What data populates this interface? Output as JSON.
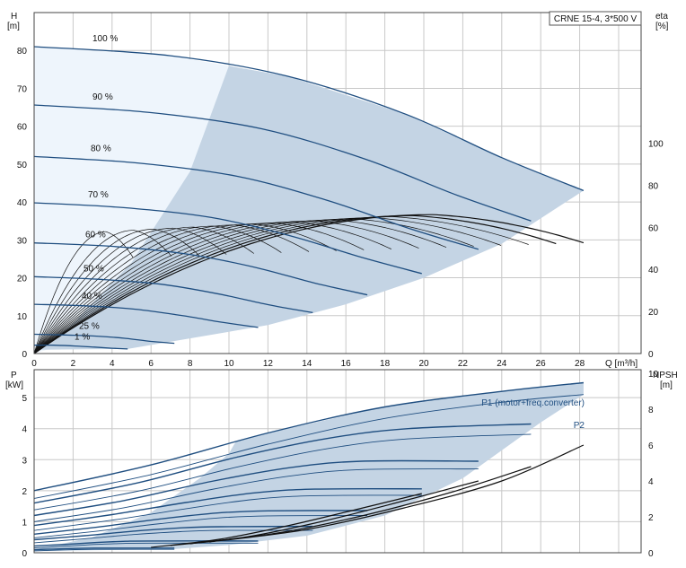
{
  "chart_data": [
    {
      "type": "line",
      "title": "CRNE 15-4, 3*500 V",
      "xlabel": "Q [m³/h]",
      "ylabel_left": [
        "H",
        "[m]"
      ],
      "ylabel_right": [
        "eta",
        "[%]"
      ],
      "xlim": [
        0,
        30
      ],
      "ylim_left": [
        0,
        90
      ],
      "ylim_right": [
        0,
        162
      ],
      "x_ticks": [
        "0",
        "2",
        "4",
        "6",
        "8",
        "10",
        "12",
        "14",
        "16",
        "18",
        "20",
        "22",
        "24",
        "26",
        "28"
      ],
      "y_ticks_left": [
        "0",
        "10",
        "20",
        "30",
        "40",
        "50",
        "60",
        "70",
        "80"
      ],
      "y_ticks_right": [
        "0",
        "20",
        "40",
        "60",
        "80",
        "100"
      ],
      "grid": true,
      "operating_range_color": "#c4d4e4",
      "region_light_color": "#eef5fc",
      "curve_color": "#1f4e80",
      "series": [
        {
          "name": "100 %",
          "points": [
            [
              0,
              81
            ],
            [
              7,
              78.6
            ],
            [
              13,
              73.2
            ],
            [
              19,
              63.3
            ],
            [
              24,
              51.7
            ],
            [
              28.2,
              43
            ]
          ]
        },
        {
          "name": "90 %",
          "points": [
            [
              0,
              65.6
            ],
            [
              6,
              63.6
            ],
            [
              11.7,
              59.3
            ],
            [
              17,
              51.3
            ],
            [
              21.6,
              42
            ],
            [
              25.5,
              35
            ]
          ]
        },
        {
          "name": "80 %",
          "points": [
            [
              0,
              52
            ],
            [
              5.3,
              50.3
            ],
            [
              10.4,
              46.8
            ],
            [
              15,
              40.5
            ],
            [
              19.2,
              33.1
            ],
            [
              22.8,
              27.5
            ]
          ]
        },
        {
          "name": "70 %",
          "points": [
            [
              0,
              39.8
            ],
            [
              4.6,
              38.5
            ],
            [
              9.1,
              35.9
            ],
            [
              13.2,
              31
            ],
            [
              16.8,
              25.4
            ],
            [
              19.9,
              21.1
            ]
          ]
        },
        {
          "name": "60 %",
          "points": [
            [
              0,
              29.2
            ],
            [
              4,
              28.3
            ],
            [
              7.8,
              26.3
            ],
            [
              11.3,
              22.8
            ],
            [
              14.4,
              18.6
            ],
            [
              17.1,
              15.5
            ]
          ]
        },
        {
          "name": "50 %",
          "points": [
            [
              0,
              20.3
            ],
            [
              3.3,
              19.6
            ],
            [
              6.5,
              18.3
            ],
            [
              9.4,
              15.8
            ],
            [
              12,
              12.9
            ],
            [
              14.3,
              10.8
            ]
          ]
        },
        {
          "name": "40 %",
          "points": [
            [
              0,
              13
            ],
            [
              2.6,
              12.6
            ],
            [
              5.2,
              11.7
            ],
            [
              7.5,
              10.1
            ],
            [
              9.6,
              8.3
            ],
            [
              11.5,
              6.9
            ]
          ]
        },
        {
          "name": "25 %",
          "points": [
            [
              0,
              5.1
            ],
            [
              1.6,
              4.9
            ],
            [
              3.2,
              4.6
            ],
            [
              4.7,
              4
            ],
            [
              6,
              3.2
            ],
            [
              7.2,
              2.7
            ]
          ]
        },
        {
          "name": "1 %",
          "points": [
            [
              0,
              2.2
            ],
            [
              1,
              2.2
            ],
            [
              2.1,
              2
            ],
            [
              3.1,
              1.7
            ],
            [
              4,
              1.4
            ],
            [
              4.8,
              1.2
            ]
          ]
        }
      ],
      "eta_curves": [
        {
          "scale": 0.18
        },
        {
          "scale": 0.25
        },
        {
          "scale": 0.3
        },
        {
          "scale": 0.35
        },
        {
          "scale": 0.4
        },
        {
          "scale": 0.45
        },
        {
          "scale": 0.5
        },
        {
          "scale": 0.55
        },
        {
          "scale": 0.6
        },
        {
          "scale": 0.65
        },
        {
          "scale": 0.7
        },
        {
          "scale": 0.75
        },
        {
          "scale": 0.8
        },
        {
          "scale": 0.85
        },
        {
          "scale": 0.9
        },
        {
          "scale": 0.95
        },
        {
          "scale": 1.0
        }
      ],
      "eta_base": {
        "q_peak": 20.5,
        "eta_peak": 66,
        "q_end": 28.2,
        "eta_end": 54
      }
    },
    {
      "type": "line",
      "xlabel": "",
      "ylabel_left": [
        "P",
        "[kW]"
      ],
      "ylabel_right": [
        "NPSH",
        "[m]"
      ],
      "xlim": [
        0,
        30
      ],
      "ylim_left": [
        0,
        5.9
      ],
      "ylim_right": [
        0,
        10
      ],
      "y_ticks_left": [
        "0",
        "1",
        "2",
        "3",
        "4",
        "5"
      ],
      "y_ticks_right": [
        "0",
        "2",
        "4",
        "6",
        "8",
        "10"
      ],
      "grid": true,
      "annotations": [
        "P1 (motor+freq.converter)",
        "P2"
      ],
      "p1_series": [
        {
          "points": [
            [
              0,
              2.0
            ],
            [
              6,
              2.83
            ],
            [
              12,
              3.86
            ],
            [
              18,
              4.7
            ],
            [
              24,
              5.2
            ],
            [
              28.2,
              5.48
            ]
          ]
        },
        {
          "points": [
            [
              0,
              1.6
            ],
            [
              5.3,
              2.25
            ],
            [
              10.4,
              3.08
            ],
            [
              15,
              3.68
            ],
            [
              19.2,
              4.0
            ],
            [
              25.5,
              4.15
            ]
          ]
        },
        {
          "points": [
            [
              0,
              1.2
            ],
            [
              4.6,
              1.68
            ],
            [
              9.1,
              2.3
            ],
            [
              13.2,
              2.75
            ],
            [
              16.8,
              2.95
            ],
            [
              22.8,
              2.95
            ]
          ]
        },
        {
          "points": [
            [
              0,
              0.88
            ],
            [
              4,
              1.23
            ],
            [
              7.8,
              1.62
            ],
            [
              11.3,
              1.93
            ],
            [
              14.4,
              2.05
            ],
            [
              19.9,
              2.06
            ]
          ]
        },
        {
          "points": [
            [
              0,
              0.6
            ],
            [
              3.3,
              0.83
            ],
            [
              6.5,
              1.09
            ],
            [
              9.4,
              1.28
            ],
            [
              12,
              1.35
            ],
            [
              17.1,
              1.36
            ]
          ]
        },
        {
          "points": [
            [
              0,
              0.42
            ],
            [
              2.6,
              0.55
            ],
            [
              5.2,
              0.7
            ],
            [
              7.5,
              0.8
            ],
            [
              9.6,
              0.84
            ],
            [
              14.3,
              0.85
            ]
          ]
        },
        {
          "points": [
            [
              0,
              0.22
            ],
            [
              1.6,
              0.27
            ],
            [
              3.2,
              0.33
            ],
            [
              4.7,
              0.37
            ],
            [
              6,
              0.38
            ],
            [
              11.5,
              0.38
            ]
          ]
        },
        {
          "points": [
            [
              0,
              0.1
            ],
            [
              1,
              0.12
            ],
            [
              2.1,
              0.14
            ],
            [
              3.1,
              0.15
            ],
            [
              4,
              0.15
            ],
            [
              7.2,
              0.15
            ]
          ]
        }
      ],
      "p2_series": [
        {
          "points": [
            [
              0,
              1.75
            ],
            [
              6,
              2.52
            ],
            [
              12,
              3.5
            ],
            [
              18,
              4.33
            ],
            [
              24,
              4.85
            ],
            [
              28.2,
              5.1
            ]
          ]
        },
        {
          "points": [
            [
              0,
              1.38
            ],
            [
              5.3,
              1.98
            ],
            [
              10.4,
              2.76
            ],
            [
              15,
              3.35
            ],
            [
              19.2,
              3.67
            ],
            [
              25.5,
              3.82
            ]
          ]
        },
        {
          "points": [
            [
              0,
              1.0
            ],
            [
              4.6,
              1.45
            ],
            [
              9.1,
              2.04
            ],
            [
              13.2,
              2.48
            ],
            [
              16.8,
              2.68
            ],
            [
              22.8,
              2.7
            ]
          ]
        },
        {
          "points": [
            [
              0,
              0.72
            ],
            [
              4,
              1.05
            ],
            [
              7.8,
              1.42
            ],
            [
              11.3,
              1.72
            ],
            [
              14.4,
              1.84
            ],
            [
              19.9,
              1.85
            ]
          ]
        },
        {
          "points": [
            [
              0,
              0.48
            ],
            [
              3.3,
              0.7
            ],
            [
              6.5,
              0.94
            ],
            [
              9.4,
              1.12
            ],
            [
              12,
              1.19
            ],
            [
              17.1,
              1.2
            ]
          ]
        },
        {
          "points": [
            [
              0,
              0.32
            ],
            [
              2.6,
              0.45
            ],
            [
              5.2,
              0.59
            ],
            [
              7.5,
              0.68
            ],
            [
              9.6,
              0.72
            ],
            [
              14.3,
              0.72
            ]
          ]
        },
        {
          "points": [
            [
              0,
              0.16
            ],
            [
              1.6,
              0.21
            ],
            [
              3.2,
              0.27
            ],
            [
              4.7,
              0.3
            ],
            [
              6,
              0.31
            ],
            [
              11.5,
              0.31
            ]
          ]
        },
        {
          "points": [
            [
              0,
              0.06
            ],
            [
              1,
              0.08
            ],
            [
              2.1,
              0.1
            ],
            [
              3.1,
              0.11
            ],
            [
              4,
              0.11
            ],
            [
              7.2,
              0.11
            ]
          ]
        }
      ],
      "npsh_series": [
        {
          "points": [
            [
              9,
              0.6
            ],
            [
              14,
              1.3
            ],
            [
              19,
              2.5
            ],
            [
              24,
              4.0
            ],
            [
              28.2,
              6.0
            ]
          ]
        },
        {
          "points": [
            [
              8,
              0.5
            ],
            [
              12.5,
              1.1
            ],
            [
              17,
              2.1
            ],
            [
              21.5,
              3.4
            ],
            [
              25.5,
              4.8
            ]
          ]
        },
        {
          "points": [
            [
              7,
              0.4
            ],
            [
              11,
              0.9
            ],
            [
              15,
              1.8
            ],
            [
              19,
              2.9
            ],
            [
              22.8,
              4.0
            ]
          ]
        },
        {
          "points": [
            [
              6,
              0.3
            ],
            [
              9.5,
              0.75
            ],
            [
              13,
              1.5
            ],
            [
              16.5,
              2.4
            ],
            [
              19.9,
              3.3
            ]
          ]
        }
      ]
    }
  ]
}
